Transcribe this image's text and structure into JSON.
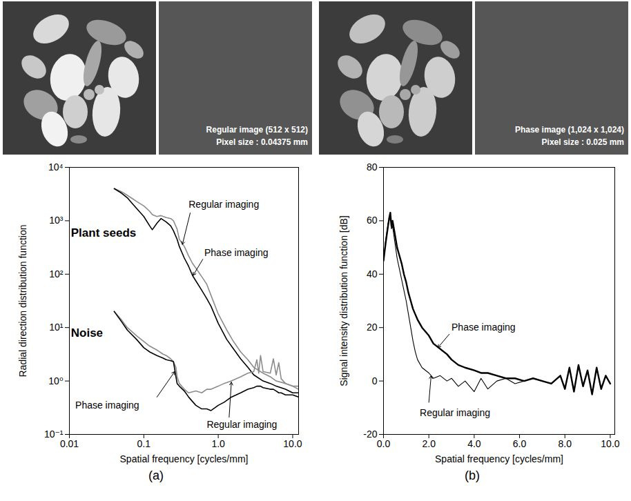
{
  "image_panels": [
    {
      "type": "seeds"
    },
    {
      "type": "noise",
      "text": [
        "Regular image (512 x 512)",
        "Pixel size : 0.04375 mm"
      ]
    },
    {
      "type": "seeds"
    },
    {
      "type": "noise",
      "text": [
        "Phase image (1,024 x 1,024)",
        "Pixel size : 0.025 mm"
      ]
    }
  ],
  "chart_data": [
    {
      "type": "line",
      "caption": "(a)",
      "log": true,
      "grid": false,
      "x_label": "Spatial frequency [cycles/mm]",
      "y_label": "Radial direction distribution function",
      "xlim": [
        0.01,
        12
      ],
      "xticks": [
        0.01,
        0.1,
        {
          "value": 1,
          "label": "1.0"
        },
        {
          "value": 10,
          "label": "10.0"
        }
      ],
      "ylim": [
        0.1,
        10000
      ],
      "yticks": [
        {
          "value": 0.1,
          "label": "10⁻¹"
        },
        {
          "value": 1,
          "label": "10⁰"
        },
        {
          "value": 10,
          "label": "10¹"
        },
        {
          "value": 100,
          "label": "10²"
        },
        {
          "value": 1000,
          "label": "10³"
        },
        {
          "value": 10000,
          "label": "10⁴"
        }
      ],
      "groups": [
        {
          "name": "Plant seeds",
          "x": 0.0105,
          "y": 600
        },
        {
          "name": "Noise",
          "x": 0.0105,
          "y": 8
        }
      ],
      "series": [
        {
          "group": "Plant seeds",
          "name": "Regular imaging",
          "color": "#8c8c8c",
          "line_style": "solid",
          "x": [
            0.04,
            0.05,
            0.06,
            0.07,
            0.08,
            0.1,
            0.12,
            0.13,
            0.15,
            0.17,
            0.2,
            0.23,
            0.25,
            0.28,
            0.3,
            0.35,
            0.4,
            0.45,
            0.5,
            0.6,
            0.7,
            0.8,
            1.0,
            1.3,
            1.6,
            2.0,
            2.5,
            3.0,
            4.0,
            5.0,
            6.0,
            8.0,
            10.0,
            12.0
          ],
          "values": [
            4000,
            3500,
            3000,
            2600,
            2300,
            1900,
            1500,
            1300,
            1200,
            1250,
            1150,
            1100,
            1000,
            700,
            450,
            330,
            220,
            160,
            130,
            90,
            65,
            40,
            18,
            9,
            5.5,
            3.5,
            2.5,
            1.8,
            1.4,
            1.2,
            1.0,
            0.9,
            0.8,
            0.8
          ]
        },
        {
          "group": "Plant seeds",
          "name": "Phase imaging",
          "color": "#000000",
          "line_style": "solid",
          "x": [
            0.04,
            0.05,
            0.06,
            0.07,
            0.08,
            0.1,
            0.12,
            0.13,
            0.15,
            0.17,
            0.2,
            0.23,
            0.25,
            0.28,
            0.3,
            0.35,
            0.4,
            0.45,
            0.5,
            0.6,
            0.7,
            0.8,
            1.0,
            1.3,
            1.6,
            2.0,
            2.5,
            3.0,
            4.0,
            5.0,
            6.0,
            8.0,
            10.0,
            12.0
          ],
          "values": [
            4000,
            3300,
            2700,
            2100,
            1700,
            1200,
            800,
            680,
            900,
            1100,
            950,
            800,
            650,
            450,
            330,
            200,
            140,
            95,
            75,
            50,
            35,
            25,
            12,
            6,
            4,
            2.6,
            1.8,
            1.3,
            1.0,
            0.9,
            0.8,
            0.7,
            0.6,
            0.6
          ]
        },
        {
          "group": "Noise",
          "name": "Regular imaging",
          "color": "#8c8c8c",
          "line_style": "solid",
          "x": [
            0.04,
            0.05,
            0.06,
            0.08,
            0.1,
            0.12,
            0.15,
            0.18,
            0.2,
            0.23,
            0.25,
            0.27,
            0.28,
            0.3,
            0.35,
            0.4,
            0.5,
            0.6,
            0.7,
            0.8,
            1.0,
            1.2,
            1.5,
            2.0,
            2.5,
            3.0,
            3.3,
            3.5,
            3.7,
            4.0,
            5.0,
            5.5,
            6.0,
            6.5,
            7.0,
            8.0,
            10.0,
            12.0
          ],
          "values": [
            20,
            14,
            10,
            7,
            5.5,
            4.5,
            3.8,
            3.2,
            3.0,
            2.6,
            2.3,
            1.8,
            1.2,
            0.9,
            0.7,
            0.6,
            0.65,
            0.6,
            0.7,
            0.7,
            0.8,
            0.9,
            1.0,
            1.2,
            1.4,
            1.5,
            2.5,
            1.4,
            3.0,
            1.5,
            1.4,
            2.6,
            1.3,
            2.2,
            1.1,
            0.9,
            0.8,
            0.7
          ]
        },
        {
          "group": "Noise",
          "name": "Phase imaging",
          "color": "#000000",
          "line_style": "solid",
          "x": [
            0.04,
            0.05,
            0.06,
            0.08,
            0.1,
            0.12,
            0.15,
            0.18,
            0.2,
            0.23,
            0.25,
            0.27,
            0.28,
            0.3,
            0.35,
            0.4,
            0.5,
            0.6,
            0.7,
            0.8,
            1.0,
            1.2,
            1.5,
            2.0,
            2.5,
            3.0,
            3.3,
            3.5,
            3.7,
            4.0,
            5.0,
            5.5,
            6.0,
            6.5,
            7.0,
            8.0,
            10.0,
            12.0
          ],
          "values": [
            20,
            13,
            9,
            6,
            4.2,
            3.5,
            3.0,
            2.7,
            2.5,
            2.4,
            2.3,
            1.2,
            0.9,
            0.8,
            0.65,
            0.5,
            0.35,
            0.3,
            0.3,
            0.28,
            0.35,
            0.4,
            0.5,
            0.6,
            0.7,
            0.75,
            0.8,
            0.8,
            0.8,
            0.75,
            0.7,
            0.7,
            0.65,
            0.6,
            0.6,
            0.55,
            0.55,
            0.5
          ]
        }
      ],
      "annotations": [
        {
          "text": "Regular imaging",
          "x": 0.4,
          "y": 2000,
          "arrow": [
            [
              0.42,
              1400
            ],
            [
              0.33,
              360
            ]
          ]
        },
        {
          "text": "Phase imaging",
          "x": 0.65,
          "y": 250,
          "arrow": [
            [
              0.62,
              190
            ],
            [
              0.46,
              95
            ]
          ]
        },
        {
          "text": "Phase imaging",
          "x": 0.012,
          "y": 0.35,
          "arrow": [
            [
              0.15,
              0.5
            ],
            [
              0.26,
              1.5
            ]
          ]
        },
        {
          "text": "Regular imaging",
          "x": 0.7,
          "y": 0.15,
          "arrow": [
            [
              1.4,
              0.21
            ],
            [
              1.5,
              0.95
            ]
          ]
        }
      ]
    },
    {
      "type": "line",
      "caption": "(b)",
      "log": false,
      "grid": false,
      "x_label": "Spatial frequency [cycles/mm]",
      "y_label": "Signal intensity distribution function [dB]",
      "xlim": [
        0,
        10.2
      ],
      "xticks": [
        {
          "value": 0,
          "label": "0.0"
        },
        {
          "value": 2,
          "label": "2.0"
        },
        {
          "value": 4,
          "label": "4.0"
        },
        {
          "value": 6,
          "label": "6.0"
        },
        {
          "value": 8,
          "label": "8.0"
        },
        {
          "value": 10,
          "label": "10.0"
        }
      ],
      "ylim": [
        -20,
        80
      ],
      "yticks": [
        -20,
        0,
        20,
        40,
        60,
        80
      ],
      "series": [
        {
          "name": "Regular imaging",
          "color": "#000000",
          "line_style": "thin",
          "x": [
            0,
            0.1,
            0.2,
            0.25,
            0.3,
            0.35,
            0.4,
            0.5,
            0.6,
            0.7,
            0.8,
            0.9,
            1.0,
            1.1,
            1.2,
            1.3,
            1.4,
            1.5,
            1.7,
            2.0,
            2.2,
            2.5,
            2.8,
            3.0,
            3.3,
            3.6,
            4.0,
            4.3,
            4.6,
            5.0,
            5.4,
            5.8,
            6.2,
            6.6,
            7.0,
            7.4,
            7.8,
            8.0,
            8.2,
            8.4,
            8.6,
            8.8,
            9.0,
            9.2,
            9.4,
            9.6,
            9.8,
            10.0
          ],
          "values": [
            45,
            53,
            59,
            60,
            62,
            57,
            58,
            52,
            46,
            42,
            38,
            34,
            30,
            25,
            20,
            15,
            11,
            8,
            5,
            3,
            1,
            2,
            0,
            1,
            -2,
            0,
            -4,
            1,
            -3,
            0,
            1,
            -1,
            0,
            1,
            0,
            -1,
            2,
            -3,
            5,
            -4,
            6,
            -2,
            4,
            -5,
            5,
            -3,
            2,
            -1
          ]
        },
        {
          "name": "Phase imaging",
          "color": "#000000",
          "line_style": "thick",
          "x": [
            0,
            0.1,
            0.2,
            0.25,
            0.3,
            0.35,
            0.4,
            0.5,
            0.6,
            0.7,
            0.8,
            0.9,
            1.0,
            1.1,
            1.2,
            1.3,
            1.4,
            1.5,
            1.7,
            2.0,
            2.2,
            2.5,
            2.8,
            3.0,
            3.3,
            3.6,
            4.0,
            4.3,
            4.6,
            5.0,
            5.4,
            5.8,
            6.2,
            6.6,
            7.0,
            7.4,
            7.8,
            8.0,
            8.2,
            8.4,
            8.6,
            8.8,
            9.0,
            9.2,
            9.4,
            9.6,
            9.8,
            10.0
          ],
          "values": [
            45,
            52,
            58,
            61,
            63,
            58,
            60,
            55,
            50,
            47,
            44,
            40,
            37,
            33,
            30,
            27,
            25,
            23,
            20,
            17,
            14,
            12,
            10,
            8,
            6,
            5,
            4,
            3,
            3,
            2,
            1,
            1,
            0,
            1,
            0,
            -1,
            2,
            -3,
            5,
            -4,
            6,
            -2,
            4,
            -5,
            5,
            -3,
            2,
            -1
          ]
        }
      ],
      "annotations": [
        {
          "text": "Phase imaging",
          "x": 3.0,
          "y": 20,
          "arrow": [
            [
              2.9,
              17.5
            ],
            [
              2.4,
              12.5
            ]
          ]
        },
        {
          "text": "Regular imaging",
          "x": 1.6,
          "y": -12,
          "arrow": [
            [
              2.0,
              -8
            ],
            [
              2.1,
              2
            ]
          ]
        }
      ]
    }
  ]
}
